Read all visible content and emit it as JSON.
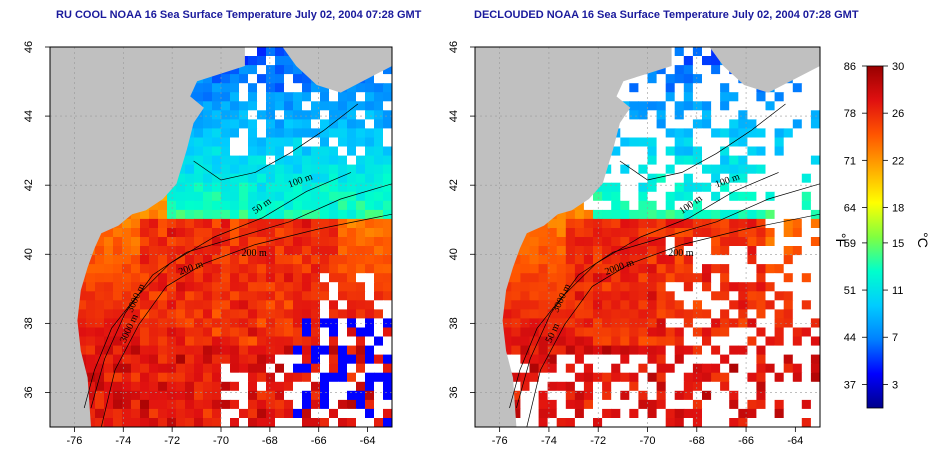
{
  "panels": [
    {
      "id": "left",
      "title": "RU COOL NOAA 16 Sea Surface Temperature July 02, 2004 07:28 GMT",
      "contour_labels": [
        "200 m",
        "100 m",
        "50 m",
        "3000 m",
        "200 m",
        "3000 m"
      ]
    },
    {
      "id": "right",
      "title": "DECLOUDED NOAA 16 Sea Surface Temperature July 02, 2004 07:28 GMT",
      "contour_labels": [
        "200 m",
        "100 m",
        "100 m",
        "50 m",
        "2000 m",
        "3000 m"
      ]
    }
  ],
  "axes": {
    "x_ticks": [
      "-76",
      "-74",
      "-72",
      "-70",
      "-68",
      "-66",
      "-64"
    ],
    "y_ticks": [
      "36",
      "38",
      "40",
      "42",
      "44",
      "46"
    ]
  },
  "colorbar": {
    "fahrenheit_labels": [
      "86",
      "78",
      "71",
      "64",
      "59",
      "51",
      "44",
      "37"
    ],
    "celsius_labels": [
      "30",
      "26",
      "22",
      "18",
      "15",
      "11",
      "7",
      "3"
    ],
    "left_unit": "°F",
    "right_unit": "°C",
    "range_celsius": [
      1,
      30
    ],
    "colors": [
      "#00008b",
      "#0000ff",
      "#0080ff",
      "#00ccff",
      "#00ffcc",
      "#80ff40",
      "#ffff00",
      "#ffaa00",
      "#ff5500",
      "#e01010",
      "#990000"
    ]
  },
  "colors": {
    "land": "#c0c0c0",
    "title": "#1a1a9c"
  }
}
